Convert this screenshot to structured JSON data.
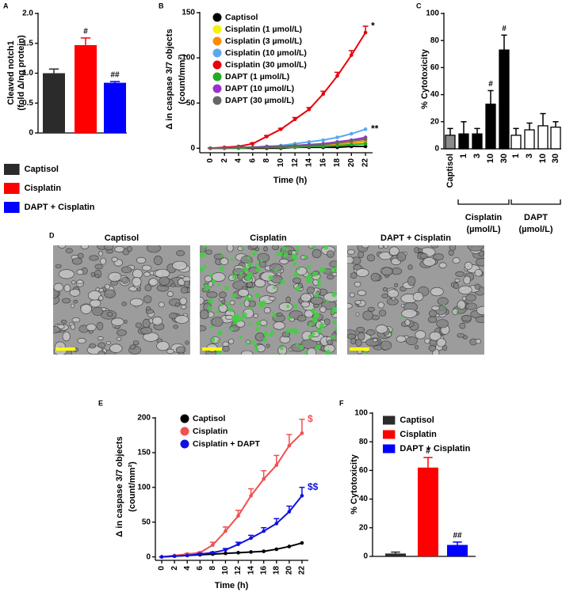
{
  "chart_data": [
    {
      "type": "bar",
      "panel": "A",
      "ylabel": [
        "Cleaved notch1",
        "(fold Δ/ng protein)"
      ],
      "ylim": [
        0,
        2
      ],
      "yticks": [
        0,
        0.5,
        {
          "value": 1,
          "label": "1.0"
        },
        1.5,
        {
          "value": 2,
          "label": "2.0"
        }
      ],
      "series": [
        {
          "name": "Captisol",
          "color": "#2b2b2b",
          "values": [
            1.0
          ],
          "errors": [
            0.07
          ]
        },
        {
          "name": "Cisplatin",
          "color": "#ff0000",
          "values": [
            1.47
          ],
          "errors": [
            0.12
          ],
          "annotation": "#"
        },
        {
          "name": "DAPT + Cisplatin",
          "color": "#0000ff",
          "values": [
            0.84
          ],
          "errors": [
            0.02
          ],
          "annotation": "##"
        }
      ]
    },
    {
      "type": "line",
      "panel": "B",
      "ylabel": [
        "Δ in caspase 3/7 objects",
        "(count/mm²)"
      ],
      "xlabel": "Time (h)",
      "x": [
        0,
        2,
        4,
        6,
        8,
        10,
        12,
        14,
        16,
        18,
        20,
        22
      ],
      "xlim": [
        -1.5,
        23
      ],
      "xticks": [
        0,
        2,
        4,
        6,
        8,
        10,
        12,
        14,
        16,
        18,
        20,
        22
      ],
      "ylim": [
        -5,
        150
      ],
      "yticks": [
        0,
        50,
        100,
        150
      ],
      "series": [
        {
          "name": "Captisol",
          "color": "#000000",
          "values": [
            0,
            0,
            0,
            0,
            0,
            0,
            1,
            1,
            1,
            1,
            2,
            2
          ]
        },
        {
          "name": "Cisplatin (1 µmol/L)",
          "color": "#f2f20a",
          "values": [
            0,
            0,
            0,
            1,
            1,
            1,
            2,
            2,
            3,
            4,
            5,
            6
          ]
        },
        {
          "name": "Cisplatin (3 µmol/L)",
          "color": "#ff8c00",
          "values": [
            0,
            0,
            1,
            1,
            1,
            2,
            2,
            3,
            4,
            5,
            6,
            8
          ]
        },
        {
          "name": "Cisplatin (10 µmol/L)",
          "color": "#5aa9f0",
          "values": [
            0,
            0,
            1,
            1,
            2,
            3,
            5,
            7,
            9,
            12,
            16,
            21
          ],
          "annotation": "**"
        },
        {
          "name": "Cisplatin (30 µmol/L)",
          "color": "#e8000b",
          "values": [
            0,
            1,
            2,
            5,
            13,
            21,
            32,
            43,
            60,
            80,
            103,
            128
          ],
          "errors": [
            0,
            0,
            0,
            1,
            1,
            1,
            2,
            2,
            3,
            4,
            5,
            7
          ],
          "annotation": "*"
        },
        {
          "name": "DAPT (1 µmol/L)",
          "color": "#22aa22",
          "values": [
            0,
            0,
            0,
            1,
            1,
            1,
            1,
            2,
            2,
            3,
            4,
            5
          ]
        },
        {
          "name": "DAPT (10 µmol/L)",
          "color": "#9932cc",
          "values": [
            0,
            0,
            1,
            1,
            2,
            2,
            3,
            4,
            5,
            7,
            9,
            12
          ]
        },
        {
          "name": "DAPT (30 µmol/L)",
          "color": "#666666",
          "values": [
            0,
            0,
            1,
            1,
            1,
            2,
            3,
            3,
            4,
            6,
            8,
            10
          ]
        }
      ]
    },
    {
      "type": "bar",
      "panel": "C",
      "ylabel": [
        "% Cytotoxicity"
      ],
      "ylim": [
        0,
        100
      ],
      "yticks": [
        0,
        20,
        40,
        60,
        80,
        100
      ],
      "categories": [
        "Captisol",
        "1",
        "3",
        "10",
        "30",
        "1",
        "3",
        "10",
        "30"
      ],
      "values": [
        10,
        11,
        11,
        33,
        73,
        10,
        14,
        17,
        16
      ],
      "errors": [
        5,
        9,
        4,
        10,
        11,
        5,
        5,
        9,
        4
      ],
      "colors": [
        "#8a8a8a",
        "#000000",
        "#000000",
        "#000000",
        "#000000",
        "#ffffff",
        "#ffffff",
        "#ffffff",
        "#ffffff"
      ],
      "annotations": [
        null,
        null,
        null,
        "#",
        "#",
        null,
        null,
        null,
        null
      ],
      "groups": [
        [
          "Cisplatin",
          "(µmol/L)"
        ],
        [
          "DAPT",
          "(µmol/L)"
        ]
      ]
    },
    {
      "type": "line",
      "panel": "E",
      "ylabel": [
        "Δ in caspase 3/7 objects",
        "(count/mm²)"
      ],
      "xlabel": "Time (h)",
      "x": [
        0,
        2,
        4,
        6,
        8,
        10,
        12,
        14,
        16,
        18,
        20,
        22
      ],
      "xlim": [
        -1,
        23
      ],
      "xticks": [
        0,
        2,
        4,
        6,
        8,
        10,
        12,
        14,
        16,
        18,
        20,
        22
      ],
      "ylim": [
        -5,
        200
      ],
      "yticks": [
        0,
        50,
        100,
        150,
        200
      ],
      "series": [
        {
          "name": "Captisol",
          "color": "#000000",
          "values": [
            0,
            1,
            2,
            3,
            4,
            5,
            6,
            7,
            8,
            11,
            15,
            20
          ]
        },
        {
          "name": "Cisplatin",
          "color": "#f05050",
          "values": [
            0,
            2,
            4,
            6,
            17,
            37,
            59,
            88,
            112,
            132,
            160,
            178
          ],
          "errors": [
            0,
            0,
            1,
            1,
            4,
            6,
            8,
            10,
            12,
            14,
            16,
            20
          ],
          "annotation": "$"
        },
        {
          "name": "Cisplatin + DAPT",
          "color": "#1010e0",
          "values": [
            0,
            1,
            2,
            4,
            6,
            10,
            18,
            27,
            37,
            48,
            65,
            88
          ],
          "errors": [
            0,
            0,
            0,
            1,
            1,
            2,
            3,
            4,
            5,
            7,
            8,
            12
          ],
          "annotation": "$$"
        }
      ]
    },
    {
      "type": "bar",
      "panel": "F",
      "ylabel": [
        "% Cytotoxicity"
      ],
      "ylim": [
        0,
        100
      ],
      "yticks": [
        0,
        20,
        40,
        60,
        80,
        100
      ],
      "series": [
        {
          "name": "Captisol",
          "color": "#2b2b2b",
          "values": [
            2
          ],
          "errors": [
            1
          ]
        },
        {
          "name": "Cisplatin",
          "color": "#ff0000",
          "values": [
            62
          ],
          "errors": [
            7
          ],
          "annotation": "#"
        },
        {
          "name": "DAPT + Cisplatin",
          "color": "#0000ff",
          "values": [
            8
          ],
          "errors": [
            2
          ],
          "annotation": "##"
        }
      ]
    }
  ],
  "image_panel": {
    "panel": "D",
    "titles": [
      "Captisol",
      "Cisplatin",
      "DAPT + Cisplatin"
    ]
  }
}
